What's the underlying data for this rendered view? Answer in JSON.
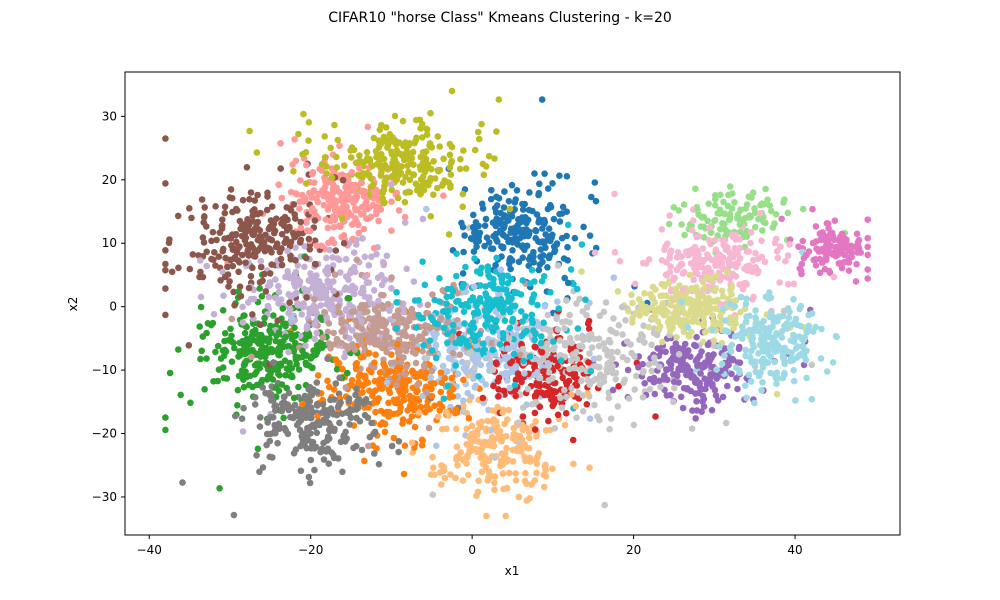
{
  "chart_data": {
    "type": "scatter",
    "title": "CIFAR10 \"horse Class\" Kmeans Clustering - k=20",
    "xlabel": "x1",
    "ylabel": "x2",
    "xlim": [
      -43,
      53
    ],
    "ylim": [
      -36,
      37
    ],
    "xticks": [
      -40,
      -20,
      0,
      20,
      40
    ],
    "yticks": [
      -30,
      -20,
      -10,
      0,
      10,
      20,
      30
    ],
    "grid": false,
    "legend": "none",
    "clusters": [
      {
        "color": "#1f77b4",
        "center": [
          6,
          12
        ],
        "spread": [
          4.5,
          5
        ],
        "count": 230
      },
      {
        "color": "#aec7e8",
        "center": [
          2,
          -7
        ],
        "spread": [
          5.5,
          4.5
        ],
        "count": 260
      },
      {
        "color": "#ff7f0e",
        "center": [
          -10,
          -13
        ],
        "spread": [
          5.5,
          4.5
        ],
        "count": 260
      },
      {
        "color": "#ffbb78",
        "center": [
          3,
          -22
        ],
        "spread": [
          5,
          4.5
        ],
        "count": 220
      },
      {
        "color": "#2ca02c",
        "center": [
          -25,
          -7
        ],
        "spread": [
          5,
          5
        ],
        "count": 300
      },
      {
        "color": "#98df8a",
        "center": [
          32,
          14
        ],
        "spread": [
          4,
          2.5
        ],
        "count": 110
      },
      {
        "color": "#d62728",
        "center": [
          9,
          -11
        ],
        "spread": [
          4,
          4
        ],
        "count": 180
      },
      {
        "color": "#ff9896",
        "center": [
          -16,
          17
        ],
        "spread": [
          4.5,
          4
        ],
        "count": 260
      },
      {
        "color": "#9467bd",
        "center": [
          27,
          -10
        ],
        "spread": [
          5,
          3.5
        ],
        "count": 200
      },
      {
        "color": "#c5b0d5",
        "center": [
          -18,
          2
        ],
        "spread": [
          6,
          5
        ],
        "count": 270
      },
      {
        "color": "#8c564b",
        "center": [
          -27,
          10
        ],
        "spread": [
          5,
          5
        ],
        "count": 250
      },
      {
        "color": "#c49c94",
        "center": [
          -10,
          -4
        ],
        "spread": [
          5.5,
          4
        ],
        "count": 250
      },
      {
        "color": "#e377c2",
        "center": [
          45,
          9
        ],
        "spread": [
          2.5,
          2.5
        ],
        "count": 120
      },
      {
        "color": "#f7b6d2",
        "center": [
          30,
          7
        ],
        "spread": [
          5,
          3
        ],
        "count": 200
      },
      {
        "color": "#7f7f7f",
        "center": [
          -20,
          -18
        ],
        "spread": [
          5,
          4
        ],
        "count": 240
      },
      {
        "color": "#c7c7c7",
        "center": [
          15,
          -8
        ],
        "spread": [
          7,
          6
        ],
        "count": 240
      },
      {
        "color": "#bcbd22",
        "center": [
          -9,
          23
        ],
        "spread": [
          6,
          4
        ],
        "count": 260
      },
      {
        "color": "#dbdb8d",
        "center": [
          27,
          0
        ],
        "spread": [
          5,
          3
        ],
        "count": 230
      },
      {
        "color": "#17becf",
        "center": [
          2,
          -1
        ],
        "spread": [
          5,
          5
        ],
        "count": 230
      },
      {
        "color": "#9edae5",
        "center": [
          37,
          -6
        ],
        "spread": [
          4,
          4
        ],
        "count": 220
      }
    ]
  }
}
